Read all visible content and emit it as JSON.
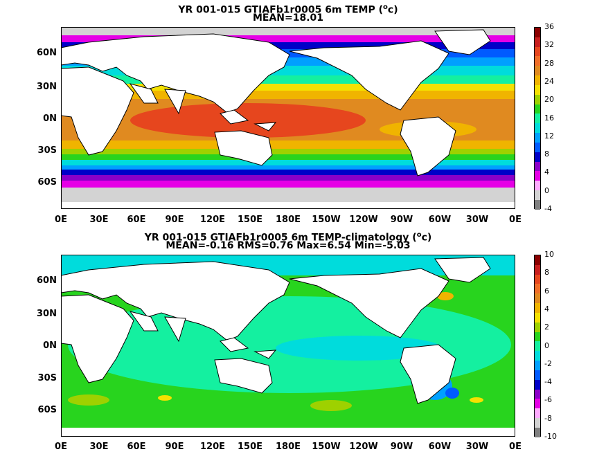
{
  "panels": [
    {
      "title": "YR 001-015 GTIAFb1r0005 6m TEMP (",
      "title_unit": "o",
      "title_tail": "c)",
      "subtitle": "MEAN=18.01",
      "colorbar_labels": [
        "36",
        "32",
        "28",
        "24",
        "20",
        "16",
        "12",
        "8",
        "4",
        "0",
        "-4"
      ],
      "colorbar_colors": [
        "#8b0000",
        "#c81e1e",
        "#e6461e",
        "#f06e28",
        "#e08a20",
        "#f0b400",
        "#f5e100",
        "#9ed100",
        "#28d41e",
        "#14f0a0",
        "#00dcdc",
        "#00a0ff",
        "#005aff",
        "#0000c8",
        "#8c00c8",
        "#e600e6",
        "#ffaaff",
        "#d3d3d3",
        "#808080"
      ]
    },
    {
      "title": "YR 001-015 GTIAFb1r0005 6m TEMP-climatology (",
      "title_unit": "o",
      "title_tail": "c)",
      "subtitle": "MEAN=-0.16   RMS=0.76   Max=6.54   Min=-5.03",
      "colorbar_labels": [
        "10",
        "8",
        "6",
        "4",
        "2",
        "0",
        "-2",
        "-4",
        "-6",
        "-8",
        "-10"
      ],
      "colorbar_colors": [
        "#8b0000",
        "#c81e1e",
        "#e6461e",
        "#f06e28",
        "#e08a20",
        "#f0b400",
        "#f5e100",
        "#9ed100",
        "#28d41e",
        "#14f0a0",
        "#00dcdc",
        "#00a0ff",
        "#005aff",
        "#0000c8",
        "#8c00c8",
        "#e600e6",
        "#ffaaff",
        "#d3d3d3",
        "#808080"
      ]
    }
  ],
  "lat_labels": [
    "60N",
    "30N",
    "0N",
    "30S",
    "60S"
  ],
  "lon_labels": [
    "0E",
    "30E",
    "60E",
    "90E",
    "120E",
    "150E",
    "180E",
    "150W",
    "120W",
    "90W",
    "60W",
    "30W",
    "0E"
  ],
  "colors": {
    "land": "#ffffff",
    "coast": "#000000",
    "ice": "#c8c8c8"
  }
}
